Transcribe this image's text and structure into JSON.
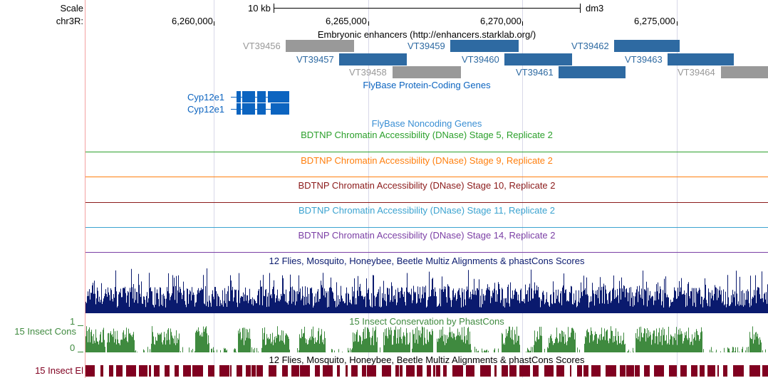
{
  "ruler": {
    "scale_label": "Scale",
    "chrom_label": "chr3R:",
    "scale_bar_text": "10 kb",
    "assembly": "dm3",
    "positions": [
      "6,260,000",
      "6,265,000",
      "6,270,000",
      "6,275,000"
    ]
  },
  "enhancers": {
    "title": "Embryonic enhancers (http://enhancers.starklab.org/)",
    "items": [
      {
        "name": "VT39456",
        "color": "#999999"
      },
      {
        "name": "VT39457",
        "color": "#2e6aa2"
      },
      {
        "name": "VT39458",
        "color": "#999999"
      },
      {
        "name": "VT39459",
        "color": "#2e6aa2"
      },
      {
        "name": "VT39460",
        "color": "#2e6aa2"
      },
      {
        "name": "VT39461",
        "color": "#2e6aa2"
      },
      {
        "name": "VT39462",
        "color": "#2e6aa2"
      },
      {
        "name": "VT39463",
        "color": "#2e6aa2"
      },
      {
        "name": "VT39464",
        "color": "#999999"
      }
    ]
  },
  "genes": {
    "title": "FlyBase Protein-Coding Genes",
    "items": [
      {
        "name": "Cyp12e1"
      },
      {
        "name": "Cyp12e1"
      }
    ],
    "color": "#0c64c0"
  },
  "noncoding": {
    "title": "FlyBase Noncoding Genes",
    "color": "#3a8fd4"
  },
  "dnase": [
    {
      "title": "BDTNP Chromatin Accessibility (DNase) Stage 5, Replicate 2",
      "color": "#2ca02c"
    },
    {
      "title": "BDTNP Chromatin Accessibility (DNase) Stage 9, Replicate 2",
      "color": "#ff7f0e"
    },
    {
      "title": "BDTNP Chromatin Accessibility (DNase) Stage 10, Replicate 2",
      "color": "#8b1a1a"
    },
    {
      "title": "BDTNP Chromatin Accessibility (DNase) Stage 11, Replicate 2",
      "color": "#3ba3d0"
    },
    {
      "title": "BDTNP Chromatin Accessibility (DNase) Stage 14, Replicate 2",
      "color": "#7b3fa5"
    }
  ],
  "multiz": {
    "title": "12 Flies, Mosquito, Honeybee, Beetle Multiz Alignments & phastCons Scores",
    "color": "#0a1a6e"
  },
  "phastcons": {
    "title": "15 Insect Conservation by PhastCons",
    "side_label": "15 Insect Cons",
    "axis_max": "1",
    "axis_min": "0",
    "color": "#3f8a3f"
  },
  "elements": {
    "title": "12 Flies, Mosquito, Honeybee, Beetle Multiz Alignments & phastCons Scores",
    "side_label": "15 Insect El",
    "color": "#800020"
  }
}
